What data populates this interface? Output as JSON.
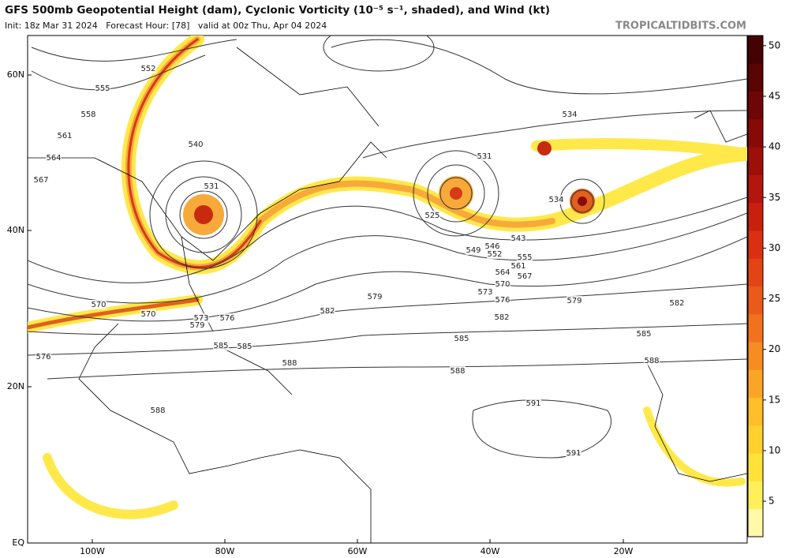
{
  "header": {
    "title": "GFS 500mb Geopotential Height (dam), Cyclonic Vorticity (10⁻⁵ s⁻¹, shaded), and Wind (kt)",
    "init": "Init: 18z Mar 31 2024   Forecast Hour: [78]   valid at 00z Thu, Apr 04 2024",
    "credit": "TROPICALTIDBITS.COM"
  },
  "map": {
    "lat_labels": [
      "60N",
      "40N",
      "20N",
      "EQ"
    ],
    "lon_labels": [
      "100W",
      "80W",
      "60W",
      "40W",
      "20W"
    ],
    "contour_labels": [
      552,
      555,
      558,
      561,
      564,
      567,
      570,
      570,
      573,
      576,
      576,
      579,
      579,
      582,
      582,
      585,
      585,
      585,
      588,
      588,
      588,
      591,
      591,
      531,
      525,
      540,
      534,
      534,
      531,
      543,
      546,
      549,
      552,
      555,
      561,
      564,
      567,
      570,
      573,
      576,
      579,
      582,
      585,
      588
    ]
  },
  "colorbar": {
    "range": [
      1.5,
      51
    ],
    "ticks": [
      5,
      10,
      15,
      20,
      25,
      30,
      35,
      40,
      45,
      50
    ]
  }
}
